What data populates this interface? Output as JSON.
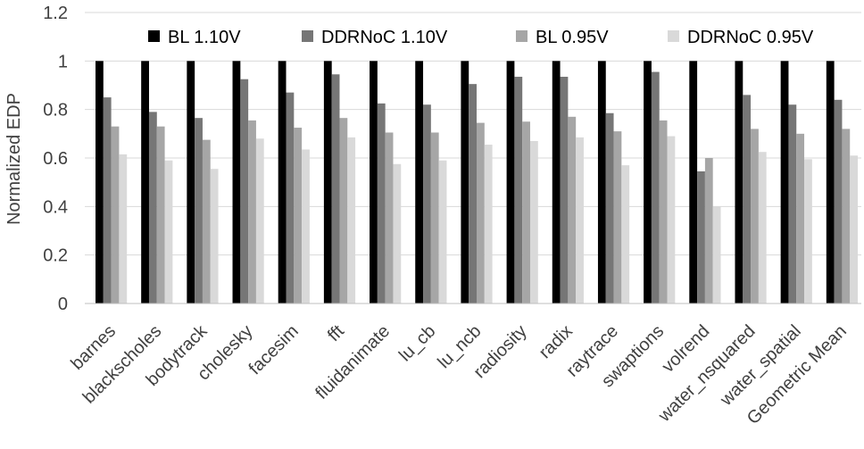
{
  "chart_data": {
    "type": "bar",
    "title": "",
    "xlabel": "",
    "ylabel": "Normalized EDP",
    "ylim": [
      0,
      1.2
    ],
    "yticks": [
      "0",
      "0.2",
      "0.4",
      "0.6",
      "0.8",
      "1",
      "1.2"
    ],
    "grid": true,
    "legend_position": "top",
    "categories": [
      "barnes",
      "blackscholes",
      "bodytrack",
      "cholesky",
      "facesim",
      "fft",
      "fluidanimate",
      "lu_cb",
      "lu_ncb",
      "radiosity",
      "radix",
      "raytrace",
      "swaptions",
      "volrend",
      "water_nsquared",
      "water_spatial",
      "Geometric Mean"
    ],
    "series": [
      {
        "name": "BL 1.10V",
        "color": "#000000",
        "values": [
          1,
          1,
          1,
          1,
          1,
          1,
          1,
          1,
          1,
          1,
          1,
          1,
          1,
          1,
          1,
          1,
          1
        ]
      },
      {
        "name": "DDRNoC 1.10V",
        "color": "#767676",
        "values": [
          0.85,
          0.79,
          0.765,
          0.925,
          0.87,
          0.945,
          0.825,
          0.82,
          0.905,
          0.935,
          0.935,
          0.785,
          0.955,
          0.545,
          0.86,
          0.82,
          0.84
        ]
      },
      {
        "name": "BL 0.95V",
        "color": "#a6a6a6",
        "values": [
          0.73,
          0.73,
          0.675,
          0.755,
          0.725,
          0.765,
          0.705,
          0.705,
          0.745,
          0.75,
          0.77,
          0.71,
          0.755,
          0.6,
          0.72,
          0.7,
          0.72
        ]
      },
      {
        "name": "DDRNoC 0.95V",
        "color": "#d9d9d9",
        "values": [
          0.615,
          0.59,
          0.555,
          0.68,
          0.635,
          0.685,
          0.575,
          0.59,
          0.655,
          0.67,
          0.685,
          0.57,
          0.69,
          0.4,
          0.625,
          0.595,
          0.61
        ]
      }
    ]
  }
}
